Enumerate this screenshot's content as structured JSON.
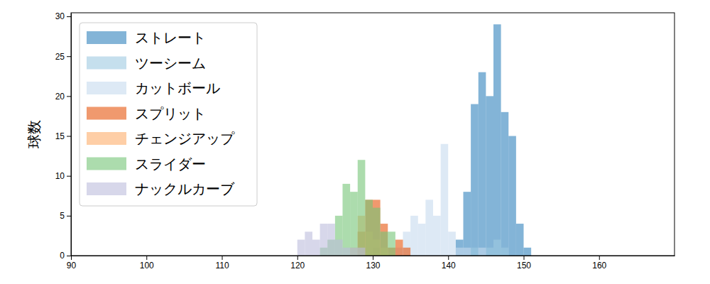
{
  "chart_data": {
    "type": "histogram",
    "y_label": "球数",
    "bins": [
      119,
      120,
      121,
      122,
      123,
      124,
      125,
      126,
      127,
      128,
      129,
      130,
      131,
      132,
      133,
      134,
      135,
      136,
      137,
      138,
      139,
      140,
      141,
      142,
      143,
      144,
      145,
      146,
      147,
      148,
      149,
      150,
      151,
      152
    ],
    "series": [
      {
        "name": "ストレート",
        "color": "#3182bd",
        "values": [
          0,
          0,
          0,
          0,
          0,
          0,
          0,
          0,
          0,
          0,
          0,
          0,
          0,
          0,
          0,
          0,
          0,
          0,
          0,
          0,
          0,
          0,
          2,
          8,
          19,
          23,
          20,
          29,
          18,
          15,
          4,
          1,
          0
        ]
      },
      {
        "name": "ツーシーム",
        "color": "#9ecae1",
        "values": [
          0,
          0,
          0,
          0,
          0,
          0,
          0,
          0,
          0,
          0,
          0,
          0,
          0,
          0,
          0,
          0,
          0,
          0,
          0,
          0,
          0,
          0,
          0,
          0,
          1,
          0,
          1,
          2,
          1,
          0,
          0,
          0,
          0
        ]
      },
      {
        "name": "カットボール",
        "color": "#c6dbef",
        "values": [
          0,
          0,
          0,
          0,
          0,
          0,
          0,
          0,
          0,
          1,
          0,
          1,
          0,
          0,
          1,
          3,
          5,
          4,
          7,
          5,
          14,
          3,
          1,
          1,
          0,
          1,
          0,
          0,
          0,
          0,
          0,
          0,
          0
        ]
      },
      {
        "name": "スプリット",
        "color": "#e6550d",
        "values": [
          0,
          0,
          0,
          0,
          0,
          0,
          0,
          0,
          0,
          3,
          7,
          7,
          4,
          1,
          2,
          1,
          0,
          0,
          0,
          0,
          0,
          0,
          0,
          0,
          0,
          0,
          0,
          0,
          0,
          0,
          0,
          0,
          0
        ]
      },
      {
        "name": "チェンジアップ",
        "color": "#fdae6b",
        "values": [
          0,
          0,
          0,
          0,
          0,
          0,
          0,
          0,
          1,
          5,
          3,
          2,
          1,
          0,
          0,
          0,
          0,
          0,
          0,
          0,
          0,
          0,
          0,
          0,
          0,
          0,
          0,
          0,
          0,
          0,
          0,
          0,
          0
        ]
      },
      {
        "name": "スライダー",
        "color": "#74c476",
        "values": [
          0,
          0,
          0,
          0,
          1,
          2,
          5,
          9,
          8,
          12,
          7,
          6,
          3,
          3,
          0,
          0,
          0,
          0,
          0,
          0,
          0,
          0,
          0,
          0,
          0,
          0,
          0,
          0,
          0,
          0,
          0,
          0,
          0
        ]
      },
      {
        "name": "ナックルカーブ",
        "color": "#bcbddc",
        "values": [
          0,
          2,
          3,
          2,
          4,
          4,
          2,
          1,
          1,
          1,
          0,
          0,
          0,
          0,
          0,
          0,
          0,
          0,
          0,
          0,
          0,
          0,
          0,
          0,
          0,
          0,
          0,
          0,
          0,
          0,
          0,
          0,
          0
        ]
      }
    ],
    "xlim": [
      90,
      170
    ],
    "xticks": [
      90,
      100,
      110,
      120,
      130,
      140,
      150,
      160
    ],
    "ylim": [
      0,
      30.45
    ],
    "yticks": [
      0,
      5,
      10,
      15,
      20,
      25,
      30
    ],
    "legend": "upper left"
  }
}
